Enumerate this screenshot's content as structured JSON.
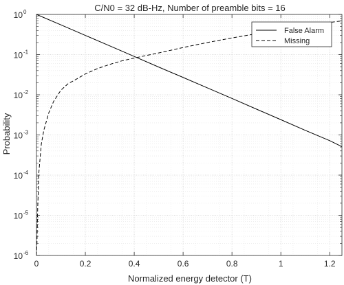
{
  "chart_data": {
    "type": "line",
    "title": "C/N0 = 32 dB-Hz, Number of preamble bits = 16",
    "xlabel": "Normalized energy detector (T)",
    "ylabel": "Probability",
    "xlim": [
      0,
      1.25
    ],
    "ylim": [
      1e-06,
      1
    ],
    "yscale": "log",
    "grid": true,
    "legend_position": "top-right",
    "x_ticks": [
      0,
      0.2,
      0.4,
      0.6,
      0.8,
      1,
      1.2
    ],
    "x_tick_labels": [
      "0",
      "0.2",
      "0.4",
      "0.6",
      "0.8",
      "1",
      "1.2"
    ],
    "y_ticks": [
      {
        "value": 1,
        "base": "10",
        "exp": "0"
      },
      {
        "value": 0.1,
        "base": "10",
        "exp": "-1"
      },
      {
        "value": 0.01,
        "base": "10",
        "exp": "-2"
      },
      {
        "value": 0.001,
        "base": "10",
        "exp": "-3"
      },
      {
        "value": 0.0001,
        "base": "10",
        "exp": "-4"
      },
      {
        "value": 1e-05,
        "base": "10",
        "exp": "-5"
      },
      {
        "value": 1e-06,
        "base": "10",
        "exp": "-6"
      }
    ],
    "series": [
      {
        "name": "False Alarm",
        "style": "solid",
        "color": "#000000",
        "x": [
          0,
          0.1,
          0.2,
          0.3,
          0.4,
          0.5,
          0.6,
          0.7,
          0.8,
          0.9,
          1.0,
          1.1,
          1.2,
          1.25
        ],
        "y": [
          1,
          0.55,
          0.3,
          0.165,
          0.09,
          0.049,
          0.027,
          0.0148,
          0.0081,
          0.0044,
          0.0024,
          0.0013,
          0.00072,
          0.00051
        ]
      },
      {
        "name": "Missing",
        "style": "dashed",
        "color": "#000000",
        "x": [
          0.0,
          0.002,
          0.005,
          0.01,
          0.02,
          0.03,
          0.05,
          0.07,
          0.1,
          0.13,
          0.15,
          0.2,
          0.25,
          0.3,
          0.35,
          0.4,
          0.5,
          0.6,
          0.7,
          0.8,
          0.9,
          1.0,
          1.1,
          1.2,
          1.25
        ],
        "y": [
          1e-06,
          2e-06,
          1.5e-05,
          0.00012,
          0.0006,
          0.0013,
          0.0035,
          0.0068,
          0.013,
          0.019,
          0.022,
          0.033,
          0.045,
          0.057,
          0.07,
          0.082,
          0.11,
          0.15,
          0.2,
          0.26,
          0.33,
          0.42,
          0.52,
          0.63,
          0.69
        ]
      }
    ]
  }
}
